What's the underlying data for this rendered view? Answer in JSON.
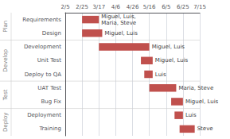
{
  "chart_data": {
    "type": "gantt",
    "orientation": "horizontal",
    "categories": [
      "Requirements",
      "Design",
      "Development",
      "Unit Test",
      "Deploy to QA",
      "UAT Test",
      "Bug Fix",
      "Deployment",
      "Training"
    ],
    "starts": [
      20,
      20,
      40,
      90,
      94,
      100,
      126,
      130,
      136
    ],
    "ends": [
      40,
      44,
      100,
      104,
      104,
      132,
      140,
      140,
      154
    ],
    "labels": [
      "Miguel, Luis,\nMaria, Steve",
      "Miguel, Luis",
      "Miguel, Luis",
      "Miguel, Luis",
      "Luis",
      "Maria, Steve",
      "Miguel, Luis",
      "Luis",
      "Steve"
    ],
    "groups": [
      {
        "name": "Plan",
        "tasks": [
          "Requirements",
          "Design"
        ]
      },
      {
        "name": "Develop",
        "tasks": [
          "Development",
          "Unit Test",
          "Deploy to QA"
        ]
      },
      {
        "name": "Test",
        "tasks": [
          "UAT Test",
          "Bug Fix"
        ]
      },
      {
        "name": "Deploy",
        "tasks": [
          "Deployment",
          "Training"
        ]
      }
    ],
    "color": "#C0504D",
    "xlim": [
      0,
      160
    ],
    "xticks": [
      {
        "value": 0,
        "label": "2/5"
      },
      {
        "value": 20,
        "label": "2/25"
      },
      {
        "value": 40,
        "label": "3/17"
      },
      {
        "value": 60,
        "label": "4/6"
      },
      {
        "value": 80,
        "label": "4/26"
      },
      {
        "value": 100,
        "label": "5/16"
      },
      {
        "value": 120,
        "label": "6/5"
      },
      {
        "value": 140,
        "label": "6/25"
      },
      {
        "value": 160,
        "label": "7/15"
      }
    ],
    "grid": true
  }
}
